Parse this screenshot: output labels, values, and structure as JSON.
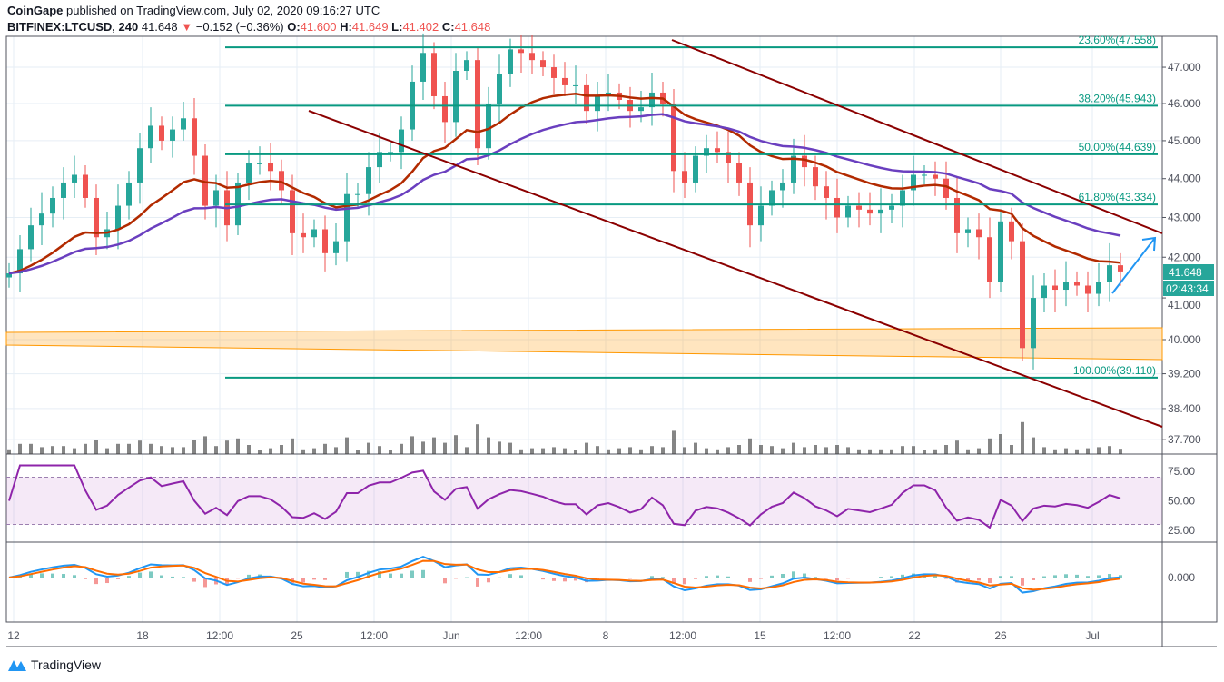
{
  "header": {
    "publisher": "CoinGape",
    "published_text": "published on TradingView.com, July 02, 2020 09:16:27 UTC",
    "symbol": "BITFINEX:LTCUSD, 240",
    "last": "41.648",
    "change": "−0.152 (−0.36%)",
    "o_label": "O:",
    "o": "41.600",
    "h_label": "H:",
    "h": "41.649",
    "l_label": "L:",
    "l": "41.402",
    "c_label": "C:",
    "c": "41.648"
  },
  "footer": {
    "brand": "TradingView"
  },
  "price_label": "41.648",
  "countdown": "02:43:34",
  "colors": {
    "up": "#26a69a",
    "down": "#ef5350",
    "fib": "#089981",
    "channel": "#8b0000",
    "ma_fast": "#b22a00",
    "ma_slow": "#6a3fbf",
    "rsi": "#8e24aa",
    "macd": "#2196f3",
    "signal": "#ff6d00",
    "zone": "#ff9800"
  },
  "chart_data": {
    "type": "candlestick",
    "scale": "log",
    "grid": true,
    "price_ticks": [
      "47.000",
      "46.000",
      "45.000",
      "44.000",
      "43.000",
      "42.000",
      "41.000",
      "40.000",
      "39.200",
      "38.400",
      "37.700"
    ],
    "x_ticks": [
      "12",
      "18",
      "12:00",
      "25",
      "12:00",
      "Jun",
      "12:00",
      "8",
      "12:00",
      "15",
      "12:00",
      "22",
      "26",
      "Jul"
    ],
    "closes": [
      41.6,
      42.2,
      42.8,
      43.1,
      43.5,
      43.9,
      44.1,
      43.5,
      42.5,
      42.7,
      43.3,
      43.9,
      44.8,
      45.4,
      45,
      45.3,
      45.6,
      44.6,
      43.3,
      43.7,
      42.8,
      43.9,
      44.4,
      44.4,
      44.2,
      43.7,
      42.6,
      42.5,
      42.7,
      42.1,
      42.4,
      43.6,
      43.6,
      44.3,
      44.7,
      44.7,
      45.3,
      46.6,
      47.4,
      46.2,
      45.5,
      46.9,
      47.2,
      44.8,
      46,
      46.8,
      47.5,
      47.4,
      47.2,
      47,
      46.7,
      46.5,
      46.5,
      45.8,
      46.2,
      46.3,
      46.1,
      45.8,
      45.9,
      46.3,
      46,
      44.2,
      43.9,
      44.6,
      44.8,
      44.7,
      44.4,
      43.9,
      42.8,
      43.3,
      43.7,
      43.9,
      44.6,
      44.3,
      43.8,
      43.5,
      43,
      43.3,
      43.2,
      43.1,
      43.2,
      43.3,
      43.7,
      44.1,
      44.1,
      44,
      43.5,
      42.6,
      42.7,
      42.5,
      41.4,
      42.9,
      42.4,
      39.8,
      41,
      41.3,
      41.2,
      41.4,
      41.3,
      41.1,
      41.4,
      41.8,
      41.648
    ],
    "fib_levels": [
      {
        "label": "23.60%(47.558)",
        "price": 47.558
      },
      {
        "label": "38.20%(45.943)",
        "price": 45.943
      },
      {
        "label": "50.00%(44.639)",
        "price": 44.639
      },
      {
        "label": "61.80%(43.334)",
        "price": 43.334
      },
      {
        "label": "100.00%(39.110)",
        "price": 39.11
      }
    ],
    "rsi": {
      "ticks": [
        "75.00",
        "50.00",
        "25.00"
      ],
      "band": [
        30,
        70
      ]
    },
    "macd": {
      "ticks": [
        "0.000"
      ]
    }
  }
}
